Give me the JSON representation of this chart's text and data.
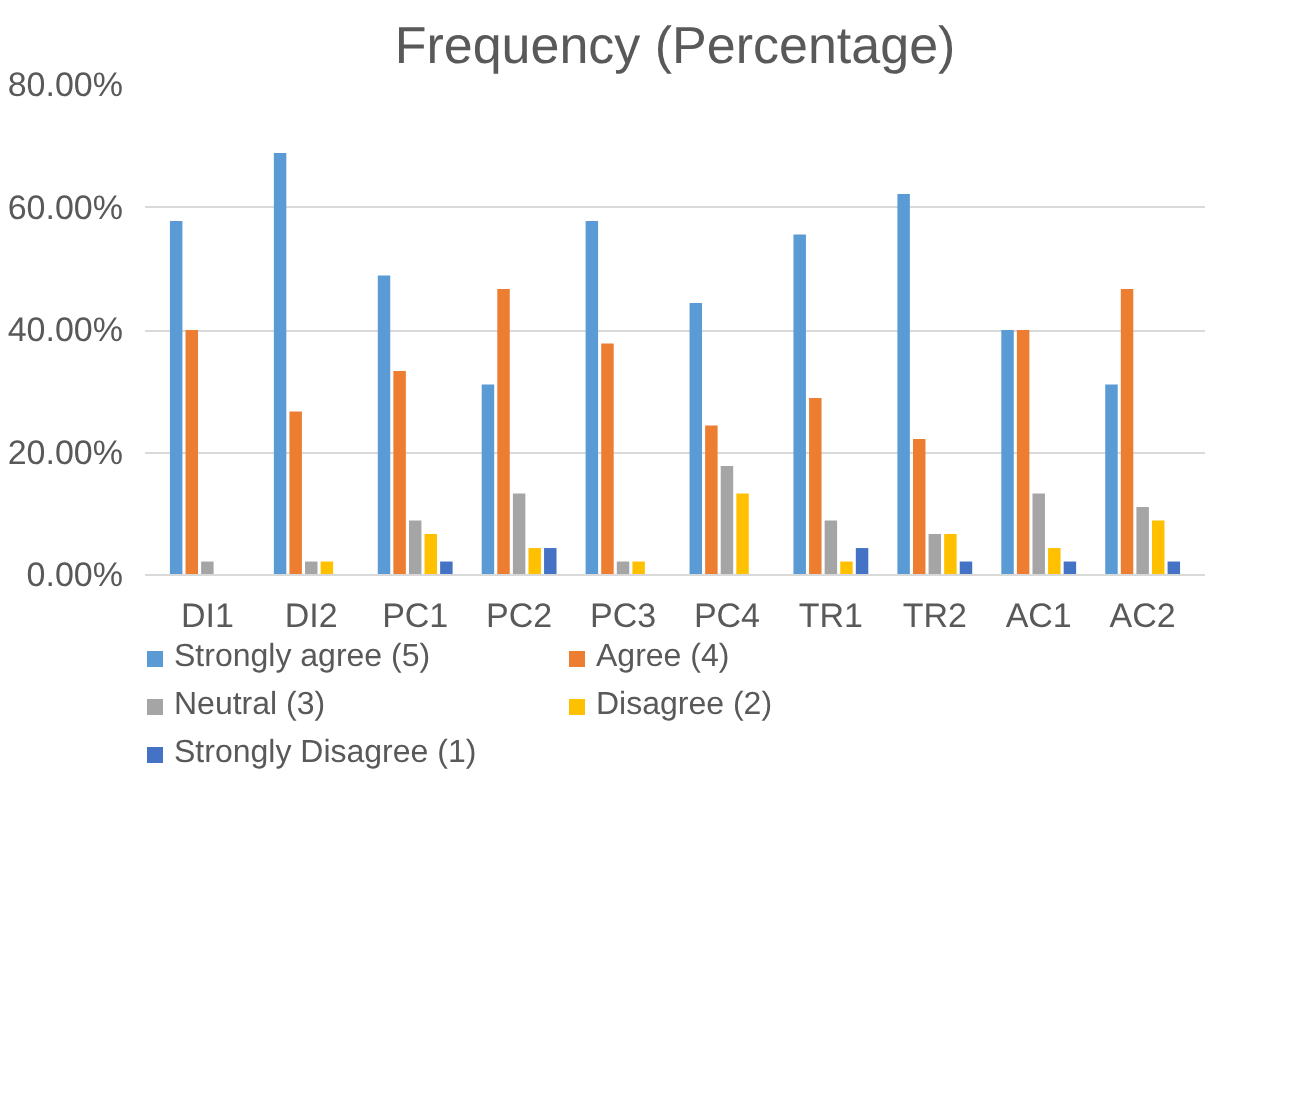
{
  "chart_data": {
    "type": "bar",
    "title": "Frequency (Percentage)",
    "categories": [
      "DI1",
      "DI2",
      "PC1",
      "PC2",
      "PC3",
      "PC4",
      "TR1",
      "TR2",
      "AC1",
      "AC2"
    ],
    "series": [
      {
        "name": "Strongly agree (5)",
        "color": "#5b9bd5",
        "values": [
          57.8,
          68.9,
          48.9,
          31.1,
          57.8,
          44.4,
          55.6,
          62.2,
          40.0,
          31.1
        ]
      },
      {
        "name": "Agree (4)",
        "color": "#ed7d31",
        "values": [
          40.0,
          26.7,
          33.3,
          46.7,
          37.8,
          24.4,
          28.9,
          22.2,
          40.0,
          46.7
        ]
      },
      {
        "name": "Neutral (3)",
        "color": "#a5a5a5",
        "values": [
          2.2,
          2.2,
          8.9,
          13.3,
          2.2,
          17.8,
          8.9,
          6.7,
          13.3,
          11.1
        ]
      },
      {
        "name": "Disagree (2)",
        "color": "#ffc000",
        "values": [
          0,
          2.2,
          6.7,
          4.4,
          2.2,
          13.3,
          2.2,
          6.7,
          4.4,
          8.9
        ]
      },
      {
        "name": "Strongly Disagree (1)",
        "color": "#4472c4",
        "values": [
          0,
          0,
          2.2,
          4.4,
          0,
          0,
          4.4,
          2.2,
          2.2,
          2.2
        ]
      }
    ],
    "ylim": [
      0,
      80
    ],
    "yticks": [
      {
        "value": 0,
        "label": "0.00%"
      },
      {
        "value": 20,
        "label": "20.00%"
      },
      {
        "value": 40,
        "label": "40.00%"
      },
      {
        "value": 60,
        "label": "60.00%"
      },
      {
        "value": 80,
        "label": "80.00%"
      }
    ],
    "grid": "y",
    "legend": "bottom"
  }
}
